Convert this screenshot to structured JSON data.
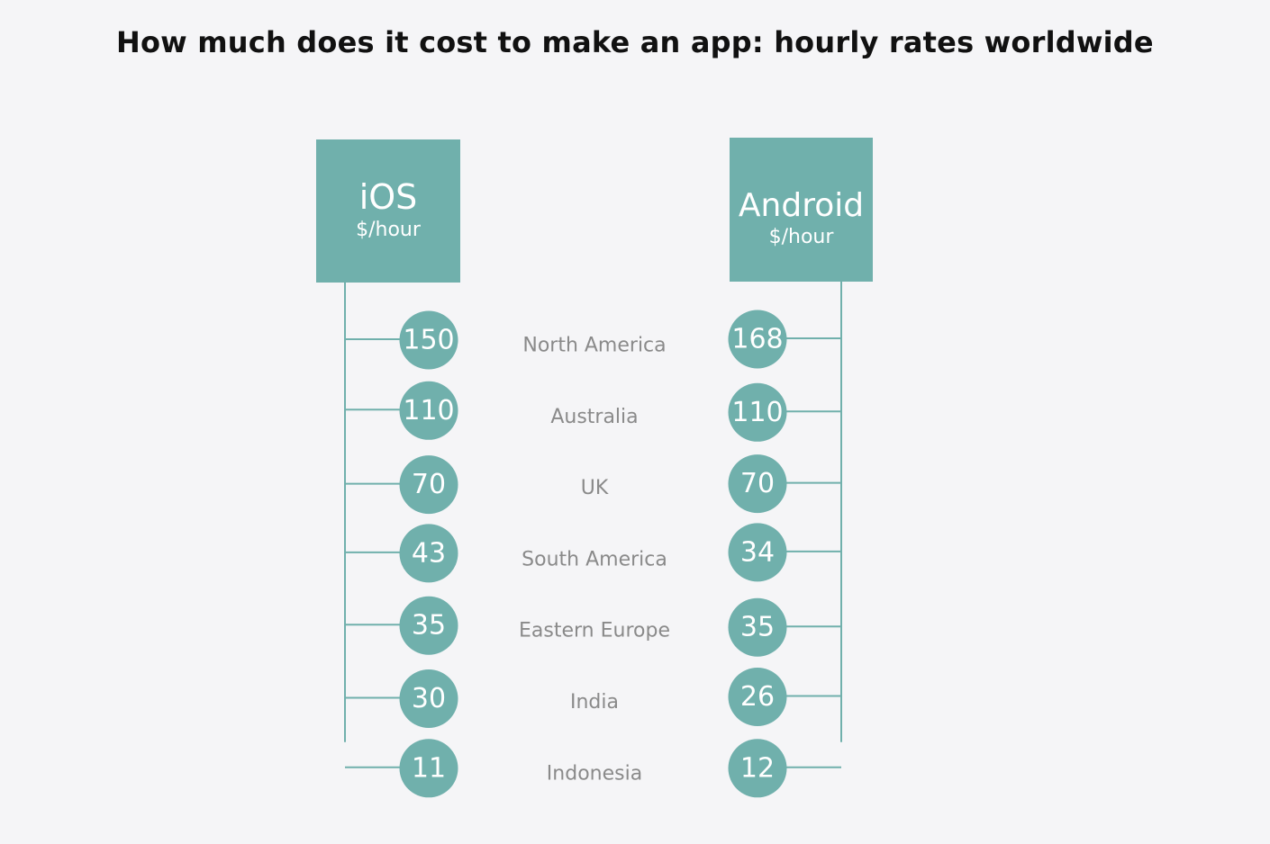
{
  "title": "How much does it cost to make an app: hourly rates worldwide",
  "colors": {
    "accent": "#70b0ac",
    "background": "#f5f5f7",
    "region_text": "#8a8a8a"
  },
  "chart_data": {
    "type": "table",
    "title": "How much does it cost to make an app: hourly rates worldwide",
    "categories": [
      "North America",
      "Australia",
      "UK",
      "South America",
      "Eastern Europe",
      "India",
      "Indonesia"
    ],
    "series": [
      {
        "name": "iOS",
        "unit": "$/hour",
        "values": [
          150,
          110,
          70,
          43,
          35,
          30,
          11
        ]
      },
      {
        "name": "Android",
        "unit": "$/hour",
        "values": [
          168,
          110,
          70,
          34,
          35,
          26,
          12
        ]
      }
    ]
  }
}
